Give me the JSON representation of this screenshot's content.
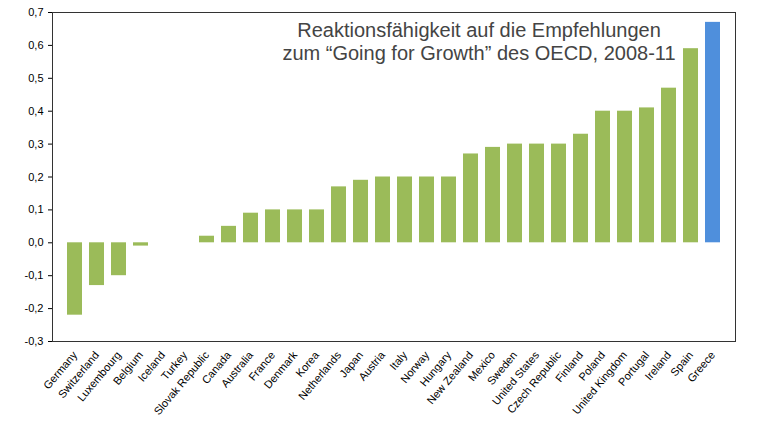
{
  "chart_data": {
    "type": "bar",
    "title": "Reaktionsfähigkeit auf die Empfehlungen\nzum “Going for Growth” des OECD, 2008-11",
    "categories": [
      "Germany",
      "Switzerland",
      "Luxembourg",
      "Belgium",
      "Iceland",
      "Turkey",
      "Slovak Republic",
      "Canada",
      "Australia",
      "France",
      "Denmark",
      "Korea",
      "Netherlands",
      "Japan",
      "Austria",
      "Italy",
      "Norway",
      "Hungary",
      "New Zealand",
      "Mexico",
      "Sweden",
      "United States",
      "Czech Republic",
      "Finland",
      "Poland",
      "United Kingdom",
      "Portugal",
      "Ireland",
      "Spain",
      "Greece"
    ],
    "values": [
      -0.22,
      -0.13,
      -0.1,
      -0.01,
      0,
      0,
      0.02,
      0.05,
      0.09,
      0.1,
      0.1,
      0.1,
      0.17,
      0.19,
      0.2,
      0.2,
      0.2,
      0.2,
      0.27,
      0.29,
      0.3,
      0.3,
      0.3,
      0.33,
      0.4,
      0.4,
      0.41,
      0.47,
      0.59,
      0.67
    ],
    "colors": [
      "#9bbb59",
      "#9bbb59",
      "#9bbb59",
      "#9bbb59",
      "#9bbb59",
      "#9bbb59",
      "#9bbb59",
      "#9bbb59",
      "#9bbb59",
      "#9bbb59",
      "#9bbb59",
      "#9bbb59",
      "#9bbb59",
      "#9bbb59",
      "#9bbb59",
      "#9bbb59",
      "#9bbb59",
      "#9bbb59",
      "#9bbb59",
      "#9bbb59",
      "#9bbb59",
      "#9bbb59",
      "#9bbb59",
      "#9bbb59",
      "#9bbb59",
      "#9bbb59",
      "#9bbb59",
      "#9bbb59",
      "#9bbb59",
      "#4f8fdc"
    ],
    "ylim": [
      -0.3,
      0.7
    ],
    "yticks": [
      {
        "value": -0.3,
        "label": "-0,3"
      },
      {
        "value": -0.2,
        "label": "-0,2"
      },
      {
        "value": -0.1,
        "label": "-0,1"
      },
      {
        "value": 0,
        "label": "0,0"
      },
      {
        "value": 0.1,
        "label": "0,1"
      },
      {
        "value": 0.2,
        "label": "0,2"
      },
      {
        "value": 0.3,
        "label": "0,3"
      },
      {
        "value": 0.4,
        "label": "0,4"
      },
      {
        "value": 0.5,
        "label": "0,5"
      },
      {
        "value": 0.6,
        "label": "0,6"
      },
      {
        "value": 0.7,
        "label": "0,7"
      }
    ],
    "grid": false
  }
}
